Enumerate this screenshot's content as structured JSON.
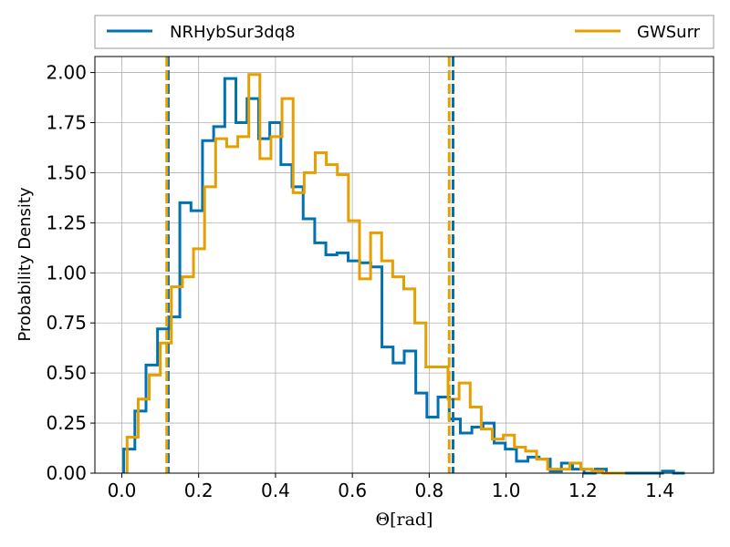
{
  "chart_data": {
    "type": "histogram",
    "xlabel": "Θ[rad]",
    "ylabel": "Probability Density",
    "xlim": [
      -0.07,
      1.54
    ],
    "ylim": [
      0,
      2.08
    ],
    "grid": true,
    "legend": {
      "placement": "top, outside plot",
      "ncol": 2
    },
    "xticks": [
      "0.0",
      "0.2",
      "0.4",
      "0.6",
      "0.8",
      "1.0",
      "1.2",
      "1.4"
    ],
    "yticks": [
      "0.00",
      "0.25",
      "0.50",
      "0.75",
      "1.00",
      "1.25",
      "1.50",
      "1.75",
      "2.00"
    ],
    "series": [
      {
        "name": "NRHybSur3dq8",
        "color": "#0072b2",
        "bin_edges": [
          0.005,
          0.034,
          0.063,
          0.093,
          0.122,
          0.151,
          0.18,
          0.21,
          0.239,
          0.268,
          0.297,
          0.326,
          0.356,
          0.385,
          0.414,
          0.443,
          0.472,
          0.502,
          0.531,
          0.56,
          0.589,
          0.619,
          0.648,
          0.677,
          0.706,
          0.735,
          0.765,
          0.794,
          0.823,
          0.852,
          0.881,
          0.911,
          0.94,
          0.969,
          0.998,
          1.027,
          1.057,
          1.086,
          1.115,
          1.144,
          1.173,
          1.203,
          1.232,
          1.261,
          1.29,
          1.319,
          1.349,
          1.378,
          1.407,
          1.436,
          1.465
        ],
        "values": [
          0.12,
          0.31,
          0.54,
          0.72,
          0.78,
          1.35,
          1.31,
          1.66,
          1.73,
          1.97,
          1.75,
          1.87,
          1.67,
          1.75,
          1.54,
          1.43,
          1.27,
          1.15,
          1.09,
          1.1,
          1.06,
          1.05,
          1.03,
          0.63,
          0.55,
          0.61,
          0.4,
          0.28,
          0.38,
          0.27,
          0.2,
          0.23,
          0.25,
          0.15,
          0.12,
          0.06,
          0.08,
          0.07,
          0.01,
          0.05,
          0.02,
          0.0,
          0.02,
          0.0,
          0.0,
          0.0,
          0.0,
          0.0,
          0.01,
          0.0
        ],
        "quantile_lines": [
          0.121,
          0.862
        ]
      },
      {
        "name": "GWSurr",
        "color": "#e69f00",
        "bin_edges": [
          0.0138,
          0.0426,
          0.0714,
          0.1002,
          0.129,
          0.1578,
          0.1866,
          0.2154,
          0.2442,
          0.273,
          0.3018,
          0.3306,
          0.3594,
          0.3882,
          0.417,
          0.4458,
          0.4746,
          0.5034,
          0.5322,
          0.561,
          0.5898,
          0.6186,
          0.6474,
          0.6762,
          0.705,
          0.7338,
          0.7626,
          0.7914,
          0.8202,
          0.849,
          0.8778,
          0.9066,
          0.9354,
          0.9642,
          0.993,
          1.0218,
          1.0506,
          1.0794,
          1.1082,
          1.137,
          1.1658,
          1.1946,
          1.2234,
          1.2522,
          1.281,
          1.3098
        ],
        "values": [
          0.18,
          0.37,
          0.49,
          0.65,
          0.93,
          0.98,
          1.12,
          1.43,
          1.67,
          1.63,
          1.68,
          1.99,
          1.57,
          1.68,
          1.87,
          1.4,
          1.5,
          1.6,
          1.54,
          1.49,
          1.26,
          0.97,
          1.2,
          1.06,
          0.98,
          0.92,
          0.75,
          0.53,
          0.53,
          0.37,
          0.45,
          0.33,
          0.22,
          0.17,
          0.19,
          0.13,
          0.11,
          0.07,
          0.02,
          0.02,
          0.05,
          0.02,
          0.01,
          0.0,
          0.0
        ],
        "quantile_lines": [
          0.117,
          0.852
        ]
      }
    ]
  }
}
